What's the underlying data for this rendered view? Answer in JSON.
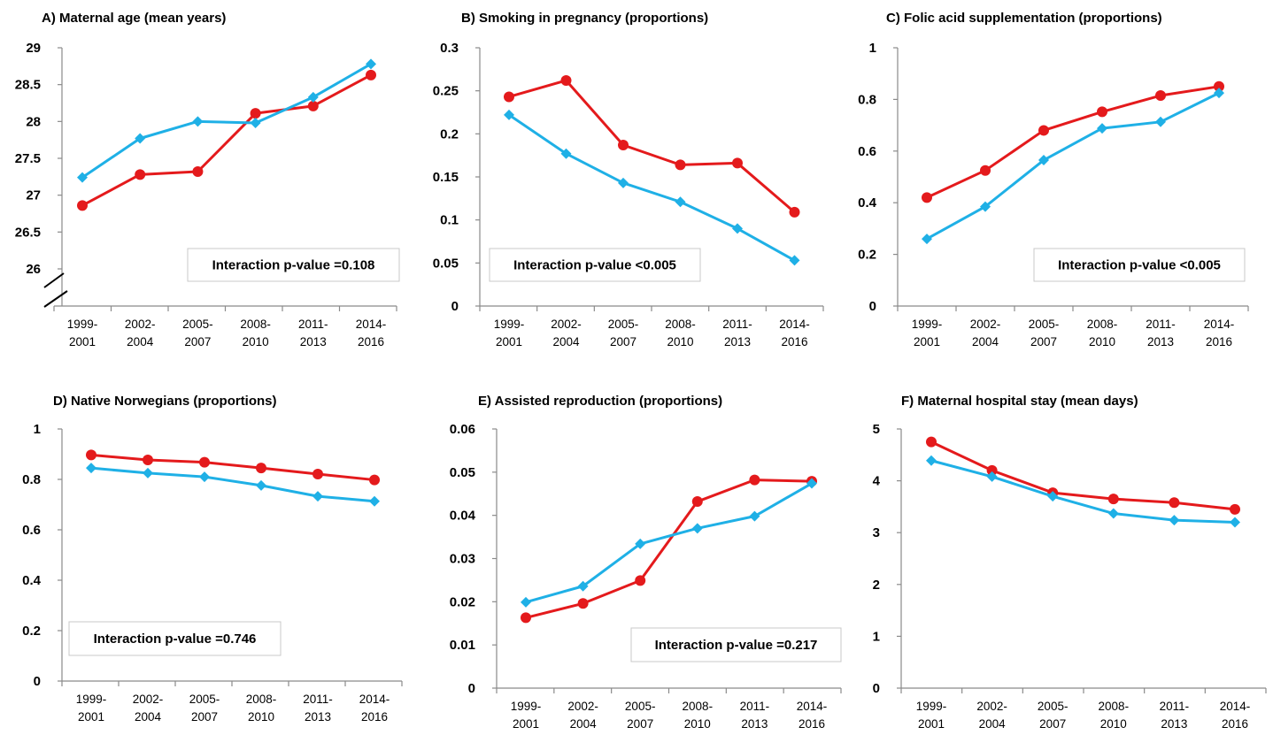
{
  "colors": {
    "red": "#e41a1c",
    "blue": "#1fb0e6",
    "axis": "#8a8a8a"
  },
  "x_categories": [
    "1999-\n2001",
    "2002-\n2004",
    "2005-\n2007",
    "2008-\n2010",
    "2011-\n2013",
    "2014-\n2016"
  ],
  "chart_data": [
    {
      "type": "line",
      "title": "A) Maternal age (mean years)",
      "categories": [
        "1999-2001",
        "2002-2004",
        "2005-2007",
        "2008-2010",
        "2011-2013",
        "2014-2016"
      ],
      "ylim": [
        26,
        29
      ],
      "yticks": [
        "26",
        "26.5",
        "27",
        "27.5",
        "28",
        "28.5",
        "29"
      ],
      "y_axis_break": true,
      "annotation": "Interaction p-value =0.108",
      "annotation_position": "bottom-right",
      "series": [
        {
          "color": "#e41a1c",
          "marker": "circle",
          "values": [
            26.86,
            27.28,
            27.32,
            28.11,
            28.21,
            28.63
          ]
        },
        {
          "color": "#1fb0e6",
          "marker": "diamond",
          "values": [
            27.24,
            27.77,
            28.0,
            27.98,
            28.33,
            28.78
          ]
        }
      ]
    },
    {
      "type": "line",
      "title": "B) Smoking in pregnancy (proportions)",
      "categories": [
        "1999-2001",
        "2002-2004",
        "2005-2007",
        "2008-2010",
        "2011-2013",
        "2014-2016"
      ],
      "ylim": [
        0,
        0.3
      ],
      "yticks": [
        "0",
        "0.05",
        "0.1",
        "0.15",
        "0.2",
        "0.25",
        "0.3"
      ],
      "annotation": "Interaction p-value <0.005",
      "annotation_position": "bottom-left",
      "series": [
        {
          "color": "#e41a1c",
          "marker": "circle",
          "values": [
            0.243,
            0.262,
            0.187,
            0.164,
            0.166,
            0.109
          ]
        },
        {
          "color": "#1fb0e6",
          "marker": "diamond",
          "values": [
            0.222,
            0.177,
            0.143,
            0.121,
            0.09,
            0.053
          ]
        }
      ]
    },
    {
      "type": "line",
      "title": "C) Folic acid supplementation (proportions)",
      "categories": [
        "1999-2001",
        "2002-2004",
        "2005-2007",
        "2008-2010",
        "2011-2013",
        "2014-2016"
      ],
      "ylim": [
        0,
        1
      ],
      "yticks": [
        "0",
        "0.2",
        "0.4",
        "0.6",
        "0.8",
        "1"
      ],
      "annotation": "Interaction p-value <0.005",
      "annotation_position": "bottom-right",
      "series": [
        {
          "color": "#e41a1c",
          "marker": "circle",
          "values": [
            0.42,
            0.525,
            0.68,
            0.752,
            0.815,
            0.85
          ]
        },
        {
          "color": "#1fb0e6",
          "marker": "diamond",
          "values": [
            0.26,
            0.385,
            0.565,
            0.688,
            0.713,
            0.825
          ]
        }
      ]
    },
    {
      "type": "line",
      "title": "D) Native Norwegians (proportions)",
      "categories": [
        "1999-2001",
        "2002-2004",
        "2005-2007",
        "2008-2010",
        "2011-2013",
        "2014-2016"
      ],
      "ylim": [
        0,
        1
      ],
      "yticks": [
        "0",
        "0.2",
        "0.4",
        "0.6",
        "0.8",
        "1"
      ],
      "annotation": "Interaction p-value =0.746",
      "annotation_position": "bottom-left",
      "series": [
        {
          "color": "#e41a1c",
          "marker": "circle",
          "values": [
            0.897,
            0.877,
            0.868,
            0.845,
            0.821,
            0.798
          ]
        },
        {
          "color": "#1fb0e6",
          "marker": "diamond",
          "values": [
            0.845,
            0.825,
            0.81,
            0.776,
            0.733,
            0.713
          ]
        }
      ]
    },
    {
      "type": "line",
      "title": "E) Assisted reproduction (proportions)",
      "categories": [
        "1999-2001",
        "2002-2004",
        "2005-2007",
        "2008-2010",
        "2011-2013",
        "2014-2016"
      ],
      "ylim": [
        0,
        0.06
      ],
      "yticks": [
        "0",
        "0.01",
        "0.02",
        "0.03",
        "0.04",
        "0.05",
        "0.06"
      ],
      "annotation": "Interaction p-value =0.217",
      "annotation_position": "bottom-right",
      "series": [
        {
          "color": "#e41a1c",
          "marker": "circle",
          "values": [
            0.0163,
            0.0196,
            0.0249,
            0.0432,
            0.0482,
            0.0479
          ]
        },
        {
          "color": "#1fb0e6",
          "marker": "diamond",
          "values": [
            0.0199,
            0.0236,
            0.0334,
            0.037,
            0.0398,
            0.0474
          ]
        }
      ]
    },
    {
      "type": "line",
      "title": "F) Maternal hospital stay (mean days)",
      "categories": [
        "1999-2001",
        "2002-2004",
        "2005-2007",
        "2008-2010",
        "2011-2013",
        "2014-2016"
      ],
      "ylim": [
        0,
        5
      ],
      "yticks": [
        "0",
        "1",
        "2",
        "3",
        "4",
        "5"
      ],
      "series": [
        {
          "color": "#e41a1c",
          "marker": "circle",
          "values": [
            4.75,
            4.2,
            3.77,
            3.65,
            3.58,
            3.45
          ]
        },
        {
          "color": "#1fb0e6",
          "marker": "diamond",
          "values": [
            4.39,
            4.08,
            3.7,
            3.37,
            3.24,
            3.2
          ]
        }
      ]
    }
  ]
}
